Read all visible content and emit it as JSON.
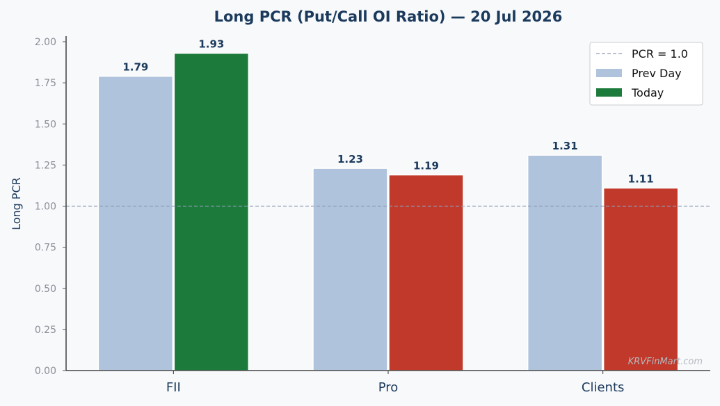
{
  "chart_data": {
    "type": "bar",
    "title": "Long PCR (Put/Call OI Ratio) — 20 Jul 2026",
    "xlabel": "",
    "ylabel": "Long PCR",
    "ylim": [
      0,
      2.0
    ],
    "yticks": [
      "0.00",
      "0.25",
      "0.50",
      "0.75",
      "1.00",
      "1.25",
      "1.50",
      "1.75",
      "2.00"
    ],
    "categories": [
      "FII",
      "Pro",
      "Clients"
    ],
    "series": [
      {
        "name": "Prev Day",
        "values": [
          1.79,
          1.23,
          1.31
        ],
        "labels": [
          "1.79",
          "1.23",
          "1.31"
        ],
        "colors": [
          "#afc3dd",
          "#afc3dd",
          "#afc3dd"
        ]
      },
      {
        "name": "Today",
        "values": [
          1.93,
          1.19,
          1.11
        ],
        "labels": [
          "1.93",
          "1.19",
          "1.11"
        ],
        "colors": [
          "#1c7a3b",
          "#c0392b",
          "#c0392b"
        ]
      }
    ],
    "reference_line": {
      "name": "PCR = 1.0",
      "value": 1.0,
      "color": "#8e9bb5"
    },
    "legend": {
      "placement": "top-right"
    },
    "grid": false,
    "text_color": "#1c3a5c"
  },
  "watermark": "KRVFinMart.com"
}
